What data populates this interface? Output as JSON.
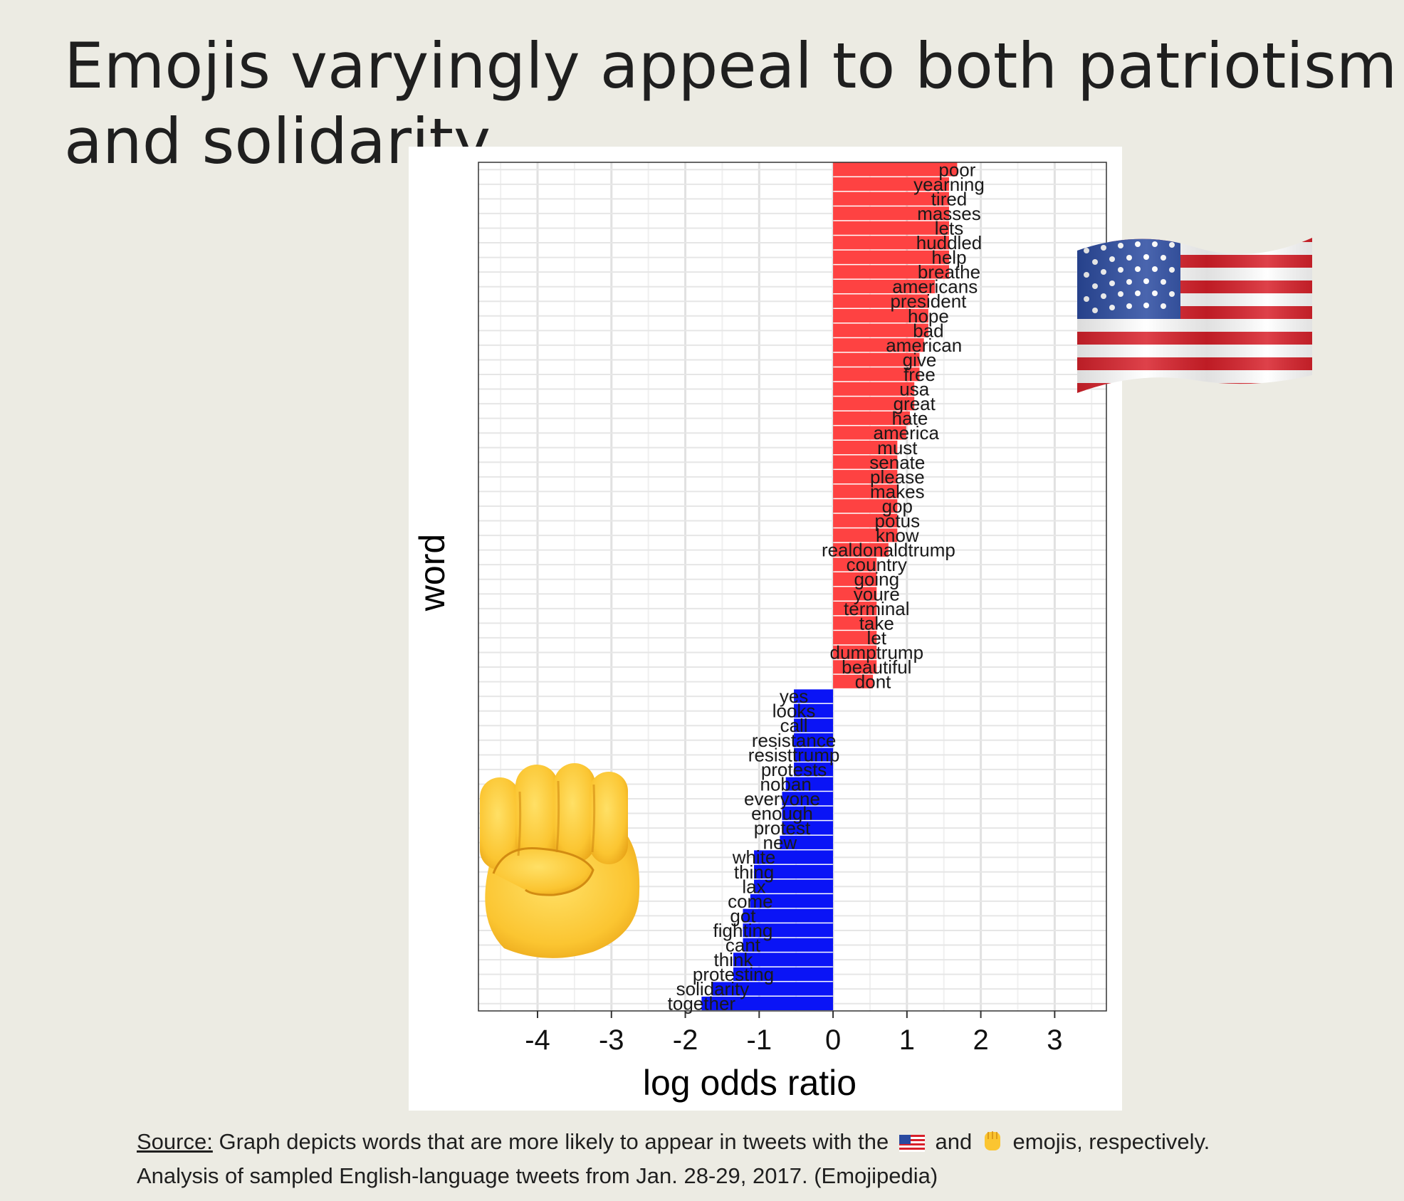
{
  "title": {
    "line1": "Emojis varyingly appeal to both patriotism",
    "line2": "and solidarity"
  },
  "icons": {
    "flag": "us-flag-emoji",
    "fist": "raised-fist-emoji"
  },
  "colors": {
    "positive": "#fe4242",
    "negative": "#0a14f6",
    "background": "#ecebe3"
  },
  "source": {
    "label": "Source:",
    "text_before": " Graph depicts words that are more likely to appear in tweets with the",
    "text_middle": "and",
    "text_after": "emojis, respectively.",
    "line2": "Analysis of sampled English-language tweets from Jan. 28-29, 2017. (Emojipedia)"
  },
  "chart_data": {
    "type": "bar",
    "orientation": "horizontal",
    "xlabel": "log odds ratio",
    "ylabel": "word",
    "xlim": [
      -4.8,
      3.7
    ],
    "xticks": [
      -4,
      -3,
      -2,
      -1,
      0,
      1,
      2,
      3
    ],
    "grid": true,
    "categories": [
      "poor",
      "yearning",
      "tired",
      "masses",
      "lets",
      "huddled",
      "help",
      "breathe",
      "americans",
      "president",
      "hope",
      "bad",
      "american",
      "give",
      "free",
      "usa",
      "great",
      "hate",
      "america",
      "must",
      "senate",
      "please",
      "makes",
      "gop",
      "potus",
      "know",
      "realdonaldtrump",
      "country",
      "going",
      "youre",
      "terminal",
      "take",
      "let",
      "dumptrump",
      "beautiful",
      "dont",
      "yes",
      "looks",
      "call",
      "resistance",
      "resisttrump",
      "protests",
      "noban",
      "everyone",
      "enough",
      "protest",
      "new",
      "white",
      "thing",
      "lax",
      "come",
      "got",
      "fighting",
      "cant",
      "think",
      "protesting",
      "solidarity",
      "together"
    ],
    "values": [
      1.68,
      1.57,
      1.57,
      1.57,
      1.57,
      1.57,
      1.57,
      1.57,
      1.38,
      1.29,
      1.29,
      1.29,
      1.23,
      1.17,
      1.17,
      1.1,
      1.1,
      1.04,
      0.99,
      0.87,
      0.87,
      0.87,
      0.87,
      0.87,
      0.87,
      0.87,
      0.75,
      0.59,
      0.59,
      0.59,
      0.59,
      0.59,
      0.59,
      0.59,
      0.59,
      0.54,
      -0.53,
      -0.53,
      -0.53,
      -0.53,
      -0.53,
      -0.53,
      -0.64,
      -0.69,
      -0.69,
      -0.69,
      -0.72,
      -1.07,
      -1.07,
      -1.07,
      -1.12,
      -1.22,
      -1.22,
      -1.22,
      -1.35,
      -1.35,
      -1.63,
      -1.78
    ]
  }
}
